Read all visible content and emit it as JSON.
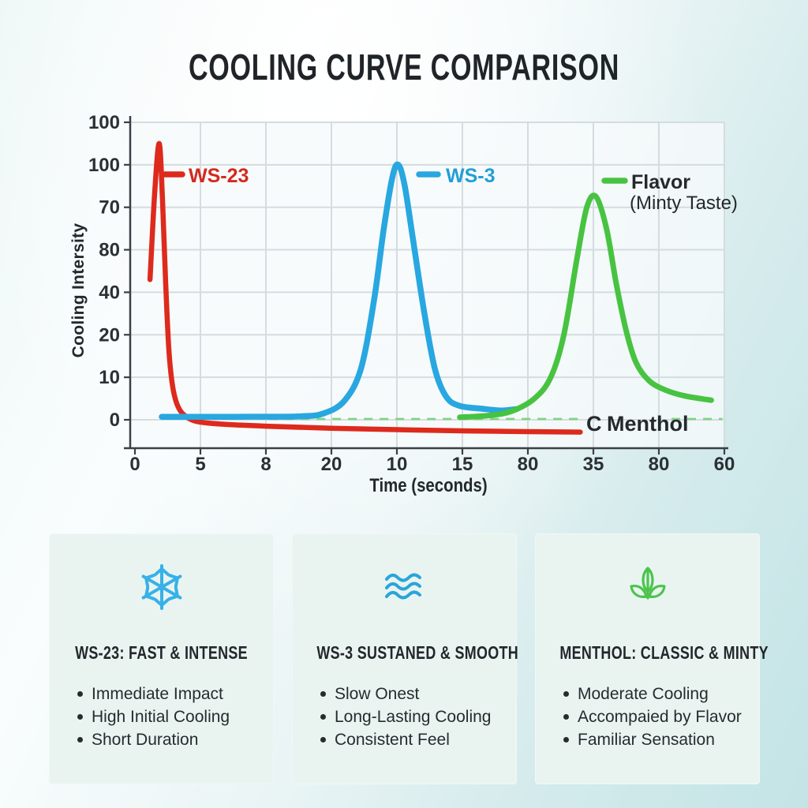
{
  "page": {
    "title": "COOLING CURVE COMPARISON"
  },
  "chart_data": {
    "type": "line",
    "title": "COOLING CURVE COMPARISON",
    "xlabel": "Time (seconds)",
    "ylabel": "Cooling Intersity",
    "x_tick_labels": [
      "0",
      "5",
      "8",
      "20",
      "10",
      "15",
      "80",
      "35",
      "80",
      "60"
    ],
    "y_tick_labels_bottom_to_top": [
      "0",
      "10",
      "20",
      "40",
      "80",
      "70",
      "100",
      "100"
    ],
    "grid": true,
    "legend_position": "inside-top",
    "units_note": "points are [x in tick-gap units from first tick, y in gridline-gap units above the 0 line]; printed tick labels are non-monotonic in the source image",
    "series": [
      {
        "name": "WS-23",
        "color": "#dd2a1c",
        "style": "solid",
        "points": [
          [
            0.23,
            3.3
          ],
          [
            0.3,
            5.3
          ],
          [
            0.37,
            6.5
          ],
          [
            0.42,
            5.2
          ],
          [
            0.47,
            3.2
          ],
          [
            0.52,
            1.6
          ],
          [
            0.58,
            0.75
          ],
          [
            0.66,
            0.3
          ],
          [
            0.78,
            0.08
          ],
          [
            0.95,
            -0.04
          ],
          [
            1.3,
            -0.1
          ],
          [
            2.0,
            -0.15
          ],
          [
            3.0,
            -0.2
          ],
          [
            4.2,
            -0.24
          ],
          [
            5.5,
            -0.27
          ],
          [
            6.8,
            -0.29
          ]
        ]
      },
      {
        "name": "WS-3",
        "color": "#28a7e0",
        "style": "solid",
        "points": [
          [
            0.41,
            0.07
          ],
          [
            1.5,
            0.07
          ],
          [
            2.5,
            0.08
          ],
          [
            2.88,
            0.15
          ],
          [
            3.2,
            0.45
          ],
          [
            3.45,
            1.2
          ],
          [
            3.65,
            2.8
          ],
          [
            3.8,
            4.5
          ],
          [
            3.93,
            5.7
          ],
          [
            4.02,
            6.0
          ],
          [
            4.12,
            5.5
          ],
          [
            4.25,
            4.2
          ],
          [
            4.42,
            2.5
          ],
          [
            4.58,
            1.2
          ],
          [
            4.75,
            0.55
          ],
          [
            4.95,
            0.33
          ],
          [
            5.3,
            0.26
          ],
          [
            5.6,
            0.22
          ],
          [
            5.83,
            0.25
          ]
        ]
      },
      {
        "name": "Flavor (Minty Taste)",
        "color": "#47c341",
        "style": "solid",
        "points": [
          [
            4.96,
            0.06
          ],
          [
            5.4,
            0.1
          ],
          [
            5.75,
            0.2
          ],
          [
            6.1,
            0.5
          ],
          [
            6.35,
            1.0
          ],
          [
            6.55,
            2.0
          ],
          [
            6.75,
            3.8
          ],
          [
            6.9,
            5.0
          ],
          [
            7.04,
            5.25
          ],
          [
            7.2,
            4.5
          ],
          [
            7.35,
            3.2
          ],
          [
            7.5,
            2.1
          ],
          [
            7.65,
            1.35
          ],
          [
            7.85,
            0.92
          ],
          [
            8.1,
            0.7
          ],
          [
            8.4,
            0.56
          ],
          [
            8.8,
            0.46
          ]
        ]
      },
      {
        "name": "Menthol",
        "color": "#7fd482",
        "style": "dashed",
        "points": [
          [
            2.05,
            0.02
          ],
          [
            8.97,
            0.02
          ]
        ]
      }
    ],
    "legend": [
      {
        "label": "WS-23",
        "color": "#dd2a1c",
        "text_color": "#d32a1e"
      },
      {
        "label": "WS-3",
        "color": "#28a7e0",
        "text_color": "#219fd6"
      },
      {
        "label": "Flavor",
        "sublabel": "(Minty Taste)",
        "color": "#47c341",
        "text_color": "#25292d"
      }
    ],
    "annotations": [
      {
        "text": "C Menthol",
        "color": "#25292d"
      }
    ]
  },
  "cards": [
    {
      "icon": "snowflake-icon",
      "icon_color": "#37b1e8",
      "title": "WS-23: FAST & INTENSE",
      "bullets": [
        "Immediate Impact",
        "High Initial Cooling",
        "Short Duration"
      ]
    },
    {
      "icon": "waves-icon",
      "icon_color": "#2aa4da",
      "title": "WS-3 SUSTANED & SMOOTH",
      "bullets": [
        "Slow Onest",
        "Long-Lasting Cooling",
        "Consistent Feel"
      ]
    },
    {
      "icon": "leaf-icon",
      "icon_color": "#4cc44c",
      "title": "MENTHOL: CLASSIC & MINTY",
      "bullets": [
        "Moderate Cooling",
        "Accompaied by Flavor",
        "Familiar Sensation"
      ]
    }
  ]
}
